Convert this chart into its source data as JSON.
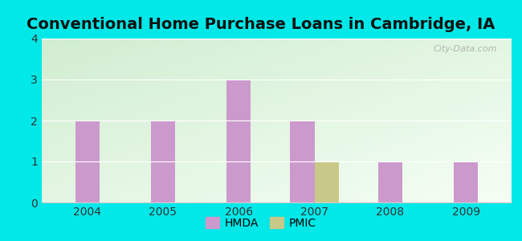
{
  "title": "Conventional Home Purchase Loans in Cambridge, IA",
  "years": [
    2004,
    2005,
    2006,
    2007,
    2008,
    2009
  ],
  "hmda": [
    2,
    2,
    3,
    2,
    1,
    1
  ],
  "pmic": [
    0,
    0,
    0,
    1,
    0,
    0
  ],
  "hmda_color": "#cc99cc",
  "pmic_color": "#c8c888",
  "background_outer": "#00e8e8",
  "ylim": [
    0,
    4
  ],
  "yticks": [
    0,
    1,
    2,
    3,
    4
  ],
  "bar_width": 0.32,
  "title_fontsize": 14,
  "legend_labels": [
    "HMDA",
    "PMIC"
  ],
  "watermark": "City-Data.com",
  "grad_top": "#d0edd0",
  "grad_bottom": "#f5fff5",
  "grid_color": "#ffffff",
  "spine_color": "#cccccc"
}
